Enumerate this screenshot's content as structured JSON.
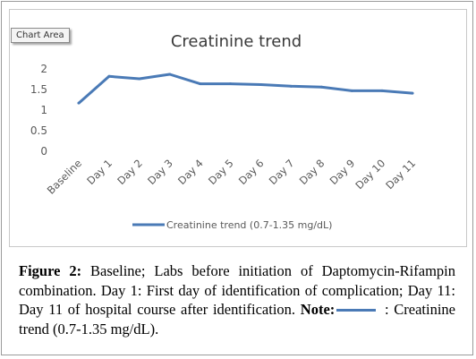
{
  "tooltip": "Chart Area",
  "colors": {
    "series": "#4a7ab6",
    "axis_text": "#595959",
    "title": "#3a3a3a"
  },
  "chart_data": {
    "type": "line",
    "title": "Creatinine trend",
    "categories": [
      "Baseline",
      "Day 1",
      "Day 2",
      "Day 3",
      "Day 4",
      "Day 5",
      "Day 6",
      "Day 7",
      "Day 8",
      "Day 9",
      "Day 10",
      "Day 11"
    ],
    "series": [
      {
        "name": "Creatinine trend (0.7-1.35 mg/dL)",
        "values": [
          1.17,
          1.82,
          1.76,
          1.87,
          1.64,
          1.64,
          1.62,
          1.58,
          1.56,
          1.47,
          1.47,
          1.41
        ]
      }
    ],
    "y_ticks": [
      "2",
      "1.5",
      "1",
      "0.5",
      "0"
    ],
    "ylim": [
      0,
      2
    ],
    "grid": false,
    "legend_position": "bottom"
  },
  "caption": {
    "label": "Figure 2:",
    "text1": " Baseline; Labs before initiation of Daptomycin-Rifampin combination. Day 1: First day of identification of complication; Day 11: Day 11 of hospital course after identification. ",
    "note_label": "Note:",
    "note_text": " : Creatinine trend (0.7-1.35 mg/dL)."
  }
}
